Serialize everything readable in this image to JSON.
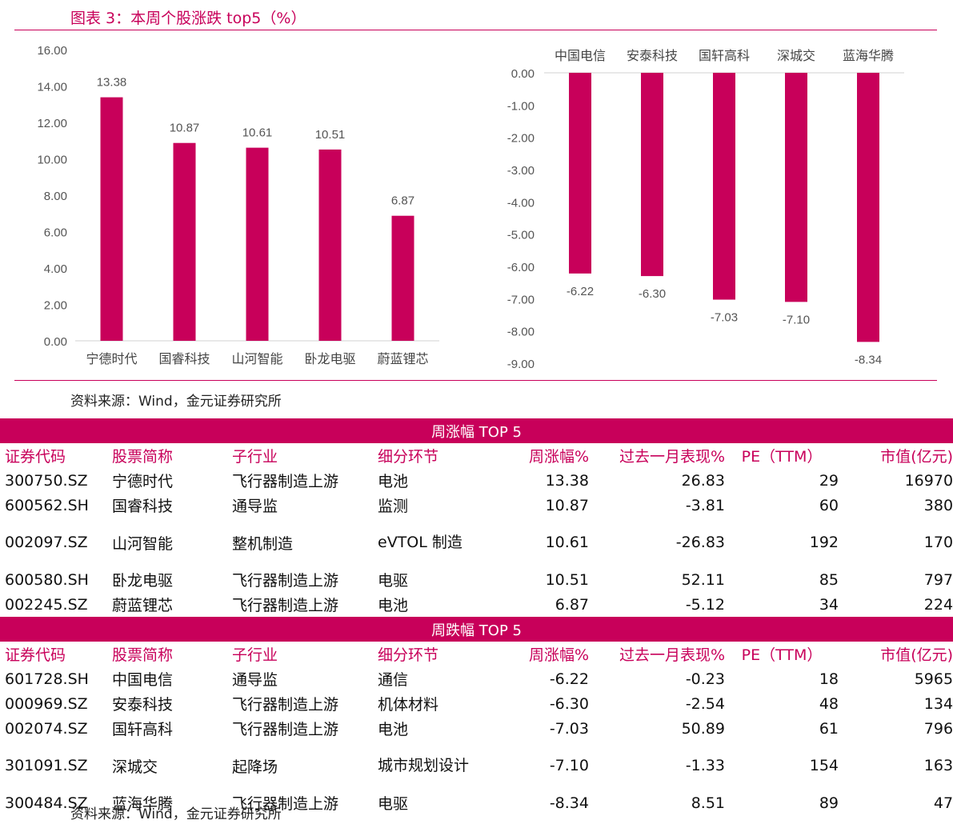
{
  "title": "图表 3：本周个股涨跌 top5（%）",
  "source": "资料来源：Wind，金元证券研究所",
  "colors": {
    "accent": "#c8005a",
    "bar": "#c8005a"
  },
  "chart_data": [
    {
      "type": "bar",
      "categories": [
        "宁德时代",
        "国睿科技",
        "山河智能",
        "卧龙电驱",
        "蔚蓝锂芯"
      ],
      "values": [
        13.38,
        10.87,
        10.61,
        10.51,
        6.87
      ],
      "ylim": [
        0,
        16
      ],
      "yticks": [
        "0.00",
        "2.00",
        "4.00",
        "6.00",
        "8.00",
        "10.00",
        "12.00",
        "14.00",
        "16.00"
      ],
      "value_labels": [
        "13.38",
        "10.87",
        "10.61",
        "10.51",
        "6.87"
      ],
      "grid": false
    },
    {
      "type": "bar",
      "categories": [
        "中国电信",
        "安泰科技",
        "国轩高科",
        "深城交",
        "蓝海华腾"
      ],
      "values": [
        -6.22,
        -6.3,
        -7.03,
        -7.1,
        -8.34
      ],
      "ylim": [
        -9,
        0
      ],
      "yticks": [
        "0.00",
        "-1.00",
        "-2.00",
        "-3.00",
        "-4.00",
        "-5.00",
        "-6.00",
        "-7.00",
        "-8.00",
        "-9.00"
      ],
      "value_labels": [
        "-6.22",
        "-6.30",
        "-7.03",
        "-7.10",
        "-8.34"
      ],
      "category_axis_position": "top",
      "grid": false
    }
  ],
  "table": {
    "gain_title": "周涨幅 TOP 5",
    "loss_title": "周跌幅 TOP 5",
    "headers": [
      "证券代码",
      "股票简称",
      "子行业",
      "细分环节",
      "周涨幅%",
      "过去一月表现%",
      "PE（TTM）",
      "市值(亿元)"
    ],
    "gainers": [
      [
        "300750.SZ",
        "宁德时代",
        "飞行器制造上游",
        "电池",
        "13.38",
        "26.83",
        "29",
        "16970"
      ],
      [
        "600562.SH",
        "国睿科技",
        "通导监",
        "监测",
        "10.87",
        "-3.81",
        "60",
        "380"
      ],
      [
        "002097.SZ",
        "山河智能",
        "整机制造",
        "eVTOL 制造",
        "10.61",
        "-26.83",
        "192",
        "170"
      ],
      [
        "600580.SH",
        "卧龙电驱",
        "飞行器制造上游",
        "电驱",
        "10.51",
        "52.11",
        "85",
        "797"
      ],
      [
        "002245.SZ",
        "蔚蓝锂芯",
        "飞行器制造上游",
        "电池",
        "6.87",
        "-5.12",
        "34",
        "224"
      ]
    ],
    "losers": [
      [
        "601728.SH",
        "中国电信",
        "通导监",
        "通信",
        "-6.22",
        "-0.23",
        "18",
        "5965"
      ],
      [
        "000969.SZ",
        "安泰科技",
        "飞行器制造上游",
        "机体材料",
        "-6.30",
        "-2.54",
        "48",
        "134"
      ],
      [
        "002074.SZ",
        "国轩高科",
        "飞行器制造上游",
        "电池",
        "-7.03",
        "50.89",
        "61",
        "796"
      ],
      [
        "301091.SZ",
        "深城交",
        "起降场",
        "城市规划设计",
        "-7.10",
        "-1.33",
        "154",
        "163"
      ],
      [
        "300484.SZ",
        "蓝海华腾",
        "飞行器制造上游",
        "电驱",
        "-8.34",
        "8.51",
        "89",
        "47"
      ]
    ]
  }
}
